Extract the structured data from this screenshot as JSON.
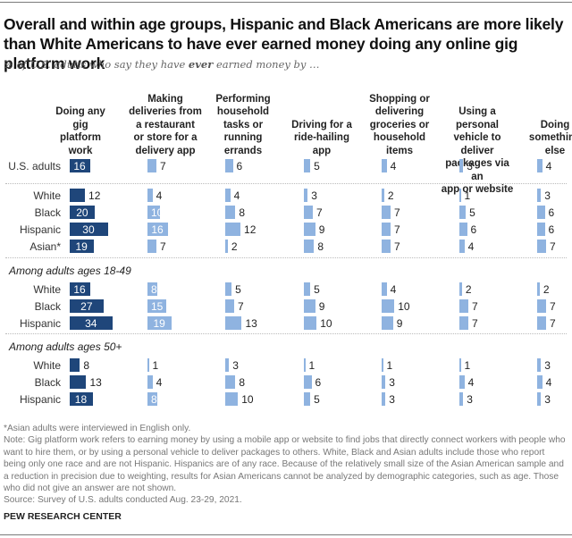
{
  "title": "Overall and within age groups, Hispanic and Black Americans are more likely than White Americans to have ever earned money doing any online gig platform work",
  "subtitle_pre": "% of U.S. adults who say they have ",
  "subtitle_bold": "ever",
  "subtitle_post": " earned money by …",
  "chart_data": {
    "type": "bar",
    "title": "Overall and within age groups, Hispanic and Black Americans are more likely than White Americans to have ever earned money doing any online gig platform work",
    "subtitle": "% of U.S. adults who say they have ever earned money by …",
    "columns": [
      "Doing any gig platform work",
      "Making deliveries from a restaurant or store for a delivery app",
      "Performing household tasks or running errands",
      "Driving for a ride-hailing app",
      "Shopping or delivering groceries or household items",
      "Using a personal vehicle to deliver packages via an app or website",
      "Doing something else"
    ],
    "groups": [
      {
        "label": "",
        "rows": [
          {
            "label": "U.S. adults",
            "values": [
              16,
              7,
              6,
              5,
              4,
              3,
              4
            ]
          }
        ]
      },
      {
        "label": "",
        "rows": [
          {
            "label": "White",
            "values": [
              12,
              4,
              4,
              3,
              2,
              1,
              3
            ]
          },
          {
            "label": "Black",
            "values": [
              20,
              10,
              8,
              7,
              7,
              5,
              6
            ]
          },
          {
            "label": "Hispanic",
            "values": [
              30,
              16,
              12,
              9,
              7,
              6,
              6
            ]
          },
          {
            "label": "Asian*",
            "values": [
              19,
              7,
              2,
              8,
              7,
              4,
              7
            ]
          }
        ]
      },
      {
        "label": "Among adults ages 18-49",
        "rows": [
          {
            "label": "White",
            "values": [
              16,
              8,
              5,
              5,
              4,
              2,
              2
            ]
          },
          {
            "label": "Black",
            "values": [
              27,
              15,
              7,
              9,
              10,
              7,
              7
            ]
          },
          {
            "label": "Hispanic",
            "values": [
              34,
              19,
              13,
              10,
              9,
              7,
              7
            ]
          }
        ]
      },
      {
        "label": "Among adults ages 50+",
        "rows": [
          {
            "label": "White",
            "values": [
              8,
              1,
              3,
              1,
              1,
              1,
              3
            ]
          },
          {
            "label": "Black",
            "values": [
              13,
              4,
              8,
              6,
              3,
              4,
              4
            ]
          },
          {
            "label": "Hispanic",
            "values": [
              18,
              8,
              10,
              5,
              3,
              3,
              3
            ]
          }
        ]
      }
    ],
    "colors": {
      "first_column": "#1f467a",
      "other_columns": "#8fb3e0"
    },
    "units": "%"
  },
  "column_heads": [
    [
      "Doing any",
      "gig",
      "platform",
      "work"
    ],
    [
      "Making",
      "deliveries from",
      "a restaurant",
      "or store for a",
      "delivery app"
    ],
    [
      "Performing",
      "household",
      "tasks or",
      "running",
      "errands"
    ],
    [
      "Driving for a",
      "ride-hailing",
      "app"
    ],
    [
      "Shopping or",
      "delivering",
      "groceries or",
      "household",
      "items"
    ],
    [
      "Using a personal",
      "vehicle to deliver",
      "packages via an",
      "app or website"
    ],
    [
      "Doing",
      "something",
      "else"
    ]
  ],
  "notes": {
    "asterisk": "*Asian adults were interviewed in English only.",
    "note": "Note: Gig platform work refers to earning money by using a mobile app or website to find jobs that directly connect workers with people who want to hire them, or by using a personal vehicle to deliver packages to others. White, Black and Asian adults include those who report being only one race and are not Hispanic. Hispanics are of any race. Because of the relatively small size of the Asian American sample and a reduction in precision due to weighting, results for Asian Americans cannot be analyzed by demographic categories, such as age. Those who did not give an answer are not shown.",
    "source": "Source: Survey of U.S. adults conducted Aug. 23-29, 2021."
  },
  "brand": "PEW RESEARCH CENTER"
}
